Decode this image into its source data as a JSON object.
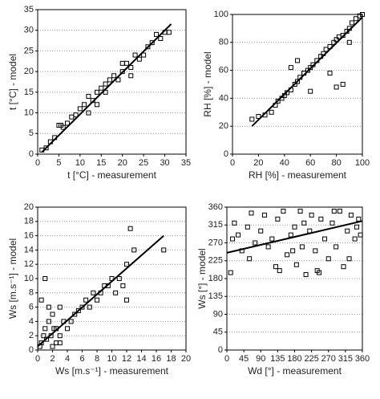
{
  "chart_data": [
    {
      "type": "scatter",
      "xlabel": "t [°C] - measurement",
      "ylabel": "t [°C] - model",
      "xlim": [
        0,
        35
      ],
      "ylim": [
        0,
        35
      ],
      "xticks": [
        0,
        5,
        10,
        15,
        20,
        25,
        30,
        35
      ],
      "yticks": [
        0,
        5,
        10,
        15,
        20,
        25,
        30,
        35
      ],
      "grid": true,
      "color": "#000000",
      "x": [
        1,
        2,
        3,
        4,
        5,
        5.5,
        6,
        7,
        8,
        9,
        10,
        11,
        12,
        13,
        14,
        15,
        16,
        17,
        18,
        19,
        20,
        21,
        22,
        23,
        24,
        25,
        26,
        27,
        28,
        29,
        30,
        31,
        12,
        14,
        16,
        20,
        22
      ],
      "y": [
        1,
        1.5,
        3,
        4,
        7,
        7,
        6.5,
        7.5,
        9,
        9.5,
        11,
        12,
        14,
        13,
        15,
        16,
        17,
        18,
        19,
        18,
        20,
        22,
        21,
        24,
        23,
        24,
        26,
        27,
        29,
        28,
        29.5,
        29.5,
        10,
        12,
        15,
        22,
        19
      ],
      "fit": {
        "x": [
          1,
          31.5
        ],
        "y": [
          0.5,
          31.5
        ]
      }
    },
    {
      "type": "scatter",
      "xlabel": "RH [%] - measurement",
      "ylabel": "RH [%] - model",
      "xlim": [
        0,
        100
      ],
      "ylim": [
        0,
        100
      ],
      "xticks": [
        0,
        20,
        40,
        60,
        80,
        100
      ],
      "yticks": [
        0,
        20,
        40,
        60,
        80,
        100
      ],
      "grid": true,
      "color": "#000000",
      "x": [
        15,
        20,
        25,
        30,
        33,
        35,
        38,
        40,
        42,
        45,
        48,
        50,
        52,
        55,
        58,
        60,
        62,
        65,
        68,
        70,
        72,
        75,
        78,
        80,
        82,
        85,
        88,
        90,
        92,
        95,
        98,
        100,
        50,
        55,
        60,
        75,
        80,
        85,
        90,
        45
      ],
      "y": [
        25,
        27,
        28,
        30,
        35,
        38,
        40,
        42,
        44,
        46,
        50,
        52,
        55,
        58,
        60,
        62,
        64,
        67,
        70,
        72,
        75,
        77,
        80,
        82,
        84,
        85,
        88,
        90,
        94,
        97,
        99,
        100,
        67,
        58,
        45,
        58,
        48,
        50,
        80,
        62
      ],
      "fit": {
        "x": [
          15,
          100
        ],
        "y": [
          20,
          98
        ]
      }
    },
    {
      "type": "scatter",
      "xlabel": "Ws [m.s⁻¹] - measurement",
      "ylabel": "Ws [m.s⁻¹] - model",
      "xlim": [
        0,
        20
      ],
      "ylim": [
        0,
        20
      ],
      "xticks": [
        0,
        2,
        4,
        6,
        8,
        10,
        12,
        14,
        16,
        18,
        20
      ],
      "yticks": [
        0,
        2,
        4,
        6,
        8,
        10,
        12,
        14,
        16,
        18,
        20
      ],
      "grid": true,
      "color": "#000000",
      "x": [
        0.3,
        0.5,
        0.8,
        1,
        1.2,
        1.5,
        1.8,
        2,
        2.2,
        2.5,
        3,
        3,
        3.5,
        4,
        4.5,
        5,
        5.5,
        6,
        6.5,
        7,
        7.5,
        8,
        8.5,
        9,
        9.5,
        10,
        10.5,
        11,
        11.5,
        12,
        12.5,
        13,
        17,
        1,
        2,
        0.5,
        12,
        3,
        1.5,
        2.5
      ],
      "y": [
        0.5,
        1,
        2,
        3,
        1.5,
        4,
        2,
        5,
        3,
        1,
        2,
        6,
        4,
        3,
        4,
        5,
        5.5,
        6,
        7,
        6,
        8,
        7,
        8,
        9,
        9,
        10,
        8,
        10,
        9,
        12,
        17,
        14,
        14,
        10,
        0.5,
        7,
        7,
        1,
        6,
        3
      ],
      "fit": {
        "x": [
          0,
          17
        ],
        "y": [
          0.5,
          16
        ]
      }
    },
    {
      "type": "scatter",
      "xlabel": "Wd [°] - measurement",
      "ylabel": "Ws [°] - model",
      "xlim": [
        0,
        360
      ],
      "ylim": [
        0,
        360
      ],
      "xticks": [
        0,
        45,
        90,
        135,
        180,
        225,
        270,
        315,
        360
      ],
      "yticks": [
        0,
        45,
        90,
        135,
        180,
        225,
        270,
        315,
        360
      ],
      "grid": true,
      "color": "#000000",
      "x": [
        10,
        20,
        30,
        40,
        55,
        60,
        75,
        90,
        100,
        110,
        120,
        135,
        140,
        150,
        160,
        170,
        180,
        185,
        195,
        200,
        210,
        220,
        225,
        235,
        240,
        250,
        260,
        270,
        280,
        290,
        300,
        310,
        320,
        330,
        340,
        350,
        355,
        15,
        65,
        130,
        175,
        205,
        245,
        285,
        325,
        345
      ],
      "y": [
        195,
        320,
        290,
        250,
        310,
        230,
        270,
        300,
        340,
        260,
        280,
        330,
        200,
        350,
        240,
        290,
        310,
        215,
        350,
        260,
        190,
        300,
        340,
        250,
        200,
        330,
        280,
        230,
        320,
        260,
        350,
        210,
        300,
        340,
        280,
        330,
        290,
        280,
        345,
        210,
        250,
        320,
        195,
        350,
        230,
        310
      ],
      "fit": {
        "x": [
          0,
          360
        ],
        "y": [
          245,
          325
        ]
      }
    }
  ]
}
